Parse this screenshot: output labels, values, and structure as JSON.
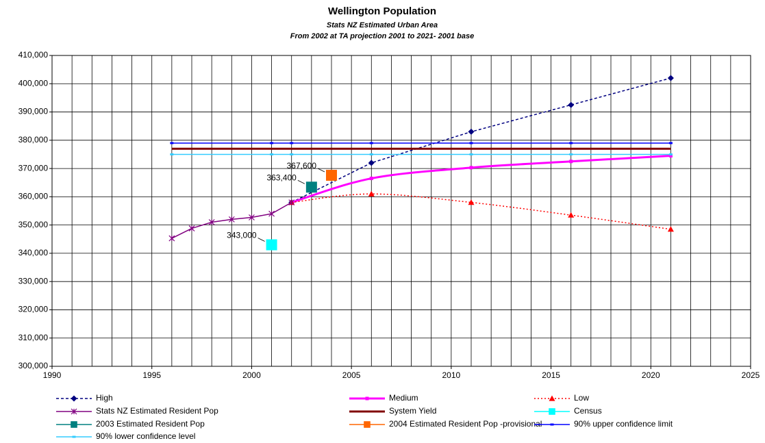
{
  "chart_data": {
    "type": "line",
    "title": "Wellington Population",
    "subtitle": [
      "Stats NZ Estimated Urban Area",
      "From 2002 at TA projection 2001 to 2021- 2001 base"
    ],
    "xlim": [
      1990,
      2025
    ],
    "xticks": [
      1990,
      1995,
      2000,
      2005,
      2010,
      2015,
      2020,
      2025
    ],
    "ylim": [
      300000,
      410000
    ],
    "yticks": [
      {
        "value": 300000,
        "label": "300,000"
      },
      {
        "value": 310000,
        "label": "310,000"
      },
      {
        "value": 320000,
        "label": "320,000"
      },
      {
        "value": 330000,
        "label": "330,000"
      },
      {
        "value": 340000,
        "label": "340,000"
      },
      {
        "value": 350000,
        "label": "350,000"
      },
      {
        "value": 360000,
        "label": "360,000"
      },
      {
        "value": 370000,
        "label": "370,000"
      },
      {
        "value": 380000,
        "label": "380,000"
      },
      {
        "value": 390000,
        "label": "390,000"
      },
      {
        "value": 400000,
        "label": "400,000"
      },
      {
        "value": 410000,
        "label": "410,000"
      }
    ],
    "grid": true,
    "x_minor_grid_step": 1,
    "legend": "bottom",
    "series": [
      {
        "name": "High",
        "color": "#000080",
        "line_style": "dashed",
        "marker": "diamond",
        "x": [
          2002,
          2006,
          2011,
          2016,
          2021
        ],
        "values": [
          358000,
          372000,
          383000,
          392500,
          402000
        ]
      },
      {
        "name": "Medium",
        "color": "#ff00ff",
        "line_style": "solid",
        "line_width": 3,
        "smooth": true,
        "marker": "square",
        "x": [
          2002,
          2006,
          2011,
          2016,
          2021
        ],
        "values": [
          358000,
          366500,
          370300,
          372500,
          374500
        ]
      },
      {
        "name": "Low",
        "color": "#ff0000",
        "line_style": "dotted",
        "smooth": true,
        "marker": "triangle",
        "x": [
          2002,
          2006,
          2011,
          2016,
          2021
        ],
        "values": [
          358000,
          361000,
          358000,
          353500,
          348500
        ]
      },
      {
        "name": "Stats NZ Estimated Resident Pop",
        "color": "#800080",
        "line_style": "solid",
        "marker": "star",
        "x": [
          1996,
          1997,
          1998,
          1999,
          2000,
          2001,
          2002
        ],
        "values": [
          345300,
          348800,
          351000,
          352000,
          352700,
          354000,
          358000
        ]
      },
      {
        "name": "System Yield",
        "color": "#800000",
        "line_style": "solid",
        "line_width": 3,
        "marker": "none",
        "x": [
          1996,
          2021
        ],
        "values": [
          377000,
          377000
        ]
      },
      {
        "name": "Census",
        "color": "#00ffff",
        "line_style": "none",
        "marker": "big-square",
        "x": [
          2001
        ],
        "values": [
          343000
        ],
        "value_labels": [
          "343,000"
        ]
      },
      {
        "name": "2003 Estimated Resident Pop",
        "color": "#008080",
        "line_style": "none",
        "marker": "big-square",
        "x": [
          2003
        ],
        "values": [
          363400
        ],
        "value_labels": [
          "363,400"
        ]
      },
      {
        "name": "2004 Estimated Resident Pop -provisional",
        "color": "#ff6600",
        "line_style": "none",
        "marker": "big-square",
        "x": [
          2004
        ],
        "values": [
          367600
        ],
        "value_labels": [
          "367,600"
        ]
      },
      {
        "name": "90% upper confidence limit",
        "color": "#0000ff",
        "line_style": "solid",
        "marker": "dash",
        "x": [
          1996,
          2001,
          2002,
          2006,
          2011,
          2016,
          2021
        ],
        "values": [
          379000,
          379000,
          379000,
          379000,
          379000,
          379000,
          379000
        ]
      },
      {
        "name": "90% lower confidence level",
        "color": "#33ccff",
        "line_style": "solid",
        "marker": "dash",
        "x": [
          1996,
          2001,
          2002,
          2006,
          2011,
          2016,
          2021
        ],
        "values": [
          375000,
          375000,
          375000,
          375000,
          375000,
          375000,
          375000
        ]
      }
    ]
  }
}
